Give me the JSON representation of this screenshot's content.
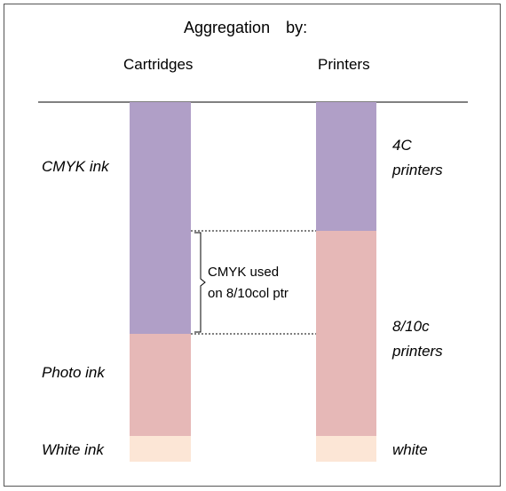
{
  "title": {
    "part1": "Aggregation",
    "part2": "by:"
  },
  "columns": {
    "cartridges": "Cartridges",
    "printers": "Printers"
  },
  "left_labels": {
    "cmyk": "CMYK ink",
    "photo": "Photo ink",
    "white": "White ink"
  },
  "right_labels": {
    "four_c": "4C\nprinters",
    "eight_ten": "8/10c\nprinters",
    "white": "white"
  },
  "brace_label": "CMYK used\non 8/10col ptr",
  "colors": {
    "cmyk": "#b09fc7",
    "photo": "#e6b8b7",
    "white": "#fce6d6",
    "line": "#000000"
  }
}
